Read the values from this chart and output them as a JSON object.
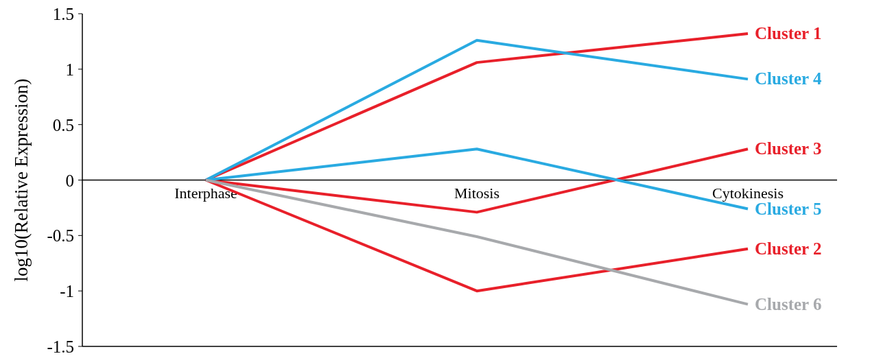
{
  "chart_data": {
    "type": "line",
    "ylabel": "log10(Relative Expression)",
    "categories": [
      "Interphase",
      "Mitosis",
      "Cytokinesis"
    ],
    "ylim": [
      -1.5,
      1.5
    ],
    "yticks": [
      -1.5,
      -1,
      -0.5,
      0,
      0.5,
      1,
      1.5
    ],
    "grid": false,
    "marker": "none",
    "line_style": "solid",
    "series": [
      {
        "name": "Cluster 1",
        "color": "#e8202a",
        "values": [
          0,
          1.06,
          1.32
        ]
      },
      {
        "name": "Cluster 4",
        "color": "#29aae1",
        "values": [
          0,
          1.26,
          0.91
        ]
      },
      {
        "name": "Cluster 3",
        "color": "#e8202a",
        "values": [
          0,
          -0.29,
          0.28
        ]
      },
      {
        "name": "Cluster 5",
        "color": "#29aae1",
        "values": [
          0,
          0.28,
          -0.26
        ]
      },
      {
        "name": "Cluster 2",
        "color": "#e8202a",
        "values": [
          0,
          -1.0,
          -0.62
        ]
      },
      {
        "name": "Cluster 6",
        "color": "#a7a9ac",
        "values": [
          0,
          -0.51,
          -1.12
        ]
      }
    ]
  }
}
